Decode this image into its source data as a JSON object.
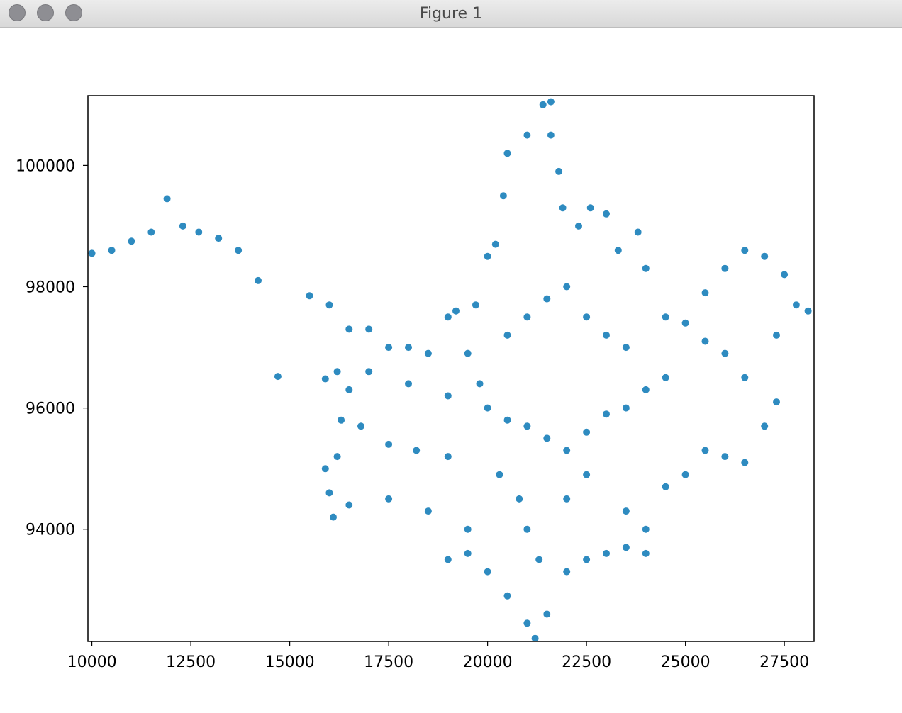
{
  "window": {
    "title": "Figure 1"
  },
  "chart_data": {
    "type": "scatter",
    "title": "",
    "xlabel": "",
    "ylabel": "",
    "xlim": [
      9900,
      28250
    ],
    "ylim": [
      92150,
      101150
    ],
    "xticks": [
      10000,
      12500,
      15000,
      17500,
      20000,
      22500,
      25000,
      27500
    ],
    "yticks": [
      94000,
      96000,
      98000,
      100000
    ],
    "xtick_labels": [
      "10000",
      "12500",
      "15000",
      "17500",
      "20000",
      "22500",
      "25000",
      "27500"
    ],
    "ytick_labels": [
      "94000",
      "96000",
      "98000",
      "100000"
    ],
    "grid": false,
    "color": "#2e8bc0",
    "series": [
      {
        "values": [
          [
            10000,
            98550
          ],
          [
            10500,
            98600
          ],
          [
            11000,
            98750
          ],
          [
            11500,
            98900
          ],
          [
            11900,
            99450
          ],
          [
            12300,
            99000
          ],
          [
            12700,
            98900
          ],
          [
            13200,
            98800
          ],
          [
            13700,
            98600
          ],
          [
            14200,
            98100
          ],
          [
            14700,
            96520
          ],
          [
            15900,
            96480
          ],
          [
            16200,
            96600
          ],
          [
            15500,
            97850
          ],
          [
            16000,
            97700
          ],
          [
            16500,
            97300
          ],
          [
            17000,
            97300
          ],
          [
            17500,
            97000
          ],
          [
            18000,
            97000
          ],
          [
            18500,
            96900
          ],
          [
            16300,
            95800
          ],
          [
            16800,
            95700
          ],
          [
            17500,
            95400
          ],
          [
            18200,
            95300
          ],
          [
            19000,
            95200
          ],
          [
            16000,
            94600
          ],
          [
            16500,
            94400
          ],
          [
            17500,
            94500
          ],
          [
            18500,
            94300
          ],
          [
            19500,
            94000
          ],
          [
            19000,
            93500
          ],
          [
            19500,
            93600
          ],
          [
            20000,
            93300
          ],
          [
            20500,
            92900
          ],
          [
            21000,
            92450
          ],
          [
            21200,
            92200
          ],
          [
            21500,
            92600
          ],
          [
            22000,
            93300
          ],
          [
            22500,
            93500
          ],
          [
            23000,
            93600
          ],
          [
            23500,
            93700
          ],
          [
            24000,
            93600
          ],
          [
            24000,
            94000
          ],
          [
            23500,
            94300
          ],
          [
            24500,
            94700
          ],
          [
            25000,
            94900
          ],
          [
            25500,
            95300
          ],
          [
            26000,
            95200
          ],
          [
            26500,
            95100
          ],
          [
            27000,
            95700
          ],
          [
            27300,
            96100
          ],
          [
            26500,
            96500
          ],
          [
            26000,
            96900
          ],
          [
            25500,
            97100
          ],
          [
            25000,
            97400
          ],
          [
            25500,
            97900
          ],
          [
            26000,
            98300
          ],
          [
            26500,
            98600
          ],
          [
            27000,
            98500
          ],
          [
            27500,
            98200
          ],
          [
            27800,
            97700
          ],
          [
            28100,
            97600
          ],
          [
            27300,
            97200
          ],
          [
            24500,
            97500
          ],
          [
            24000,
            98300
          ],
          [
            23800,
            98900
          ],
          [
            23300,
            98600
          ],
          [
            23000,
            99200
          ],
          [
            22600,
            99300
          ],
          [
            22300,
            99000
          ],
          [
            21900,
            99300
          ],
          [
            21800,
            99900
          ],
          [
            21600,
            100500
          ],
          [
            21400,
            101000
          ],
          [
            21600,
            101050
          ],
          [
            21000,
            100500
          ],
          [
            20500,
            100200
          ],
          [
            20400,
            99500
          ],
          [
            20200,
            98700
          ],
          [
            20000,
            98500
          ],
          [
            19700,
            97700
          ],
          [
            19200,
            97600
          ],
          [
            19000,
            97500
          ],
          [
            19500,
            96900
          ],
          [
            19800,
            96400
          ],
          [
            20000,
            96000
          ],
          [
            20500,
            95800
          ],
          [
            21000,
            95700
          ],
          [
            21500,
            95500
          ],
          [
            22000,
            95300
          ],
          [
            22500,
            95600
          ],
          [
            23000,
            95900
          ],
          [
            23500,
            96000
          ],
          [
            24000,
            96300
          ],
          [
            24500,
            96500
          ],
          [
            20500,
            97200
          ],
          [
            21000,
            97500
          ],
          [
            21500,
            97800
          ],
          [
            22000,
            98000
          ],
          [
            22500,
            97500
          ],
          [
            23000,
            97200
          ],
          [
            23500,
            97000
          ],
          [
            20800,
            94500
          ],
          [
            21000,
            94000
          ],
          [
            21300,
            93500
          ],
          [
            20300,
            94900
          ],
          [
            22000,
            94500
          ],
          [
            22500,
            94900
          ],
          [
            19000,
            96200
          ],
          [
            18000,
            96400
          ],
          [
            17000,
            96600
          ],
          [
            16500,
            96300
          ],
          [
            16200,
            95200
          ],
          [
            15900,
            95000
          ],
          [
            16100,
            94200
          ]
        ]
      }
    ]
  }
}
